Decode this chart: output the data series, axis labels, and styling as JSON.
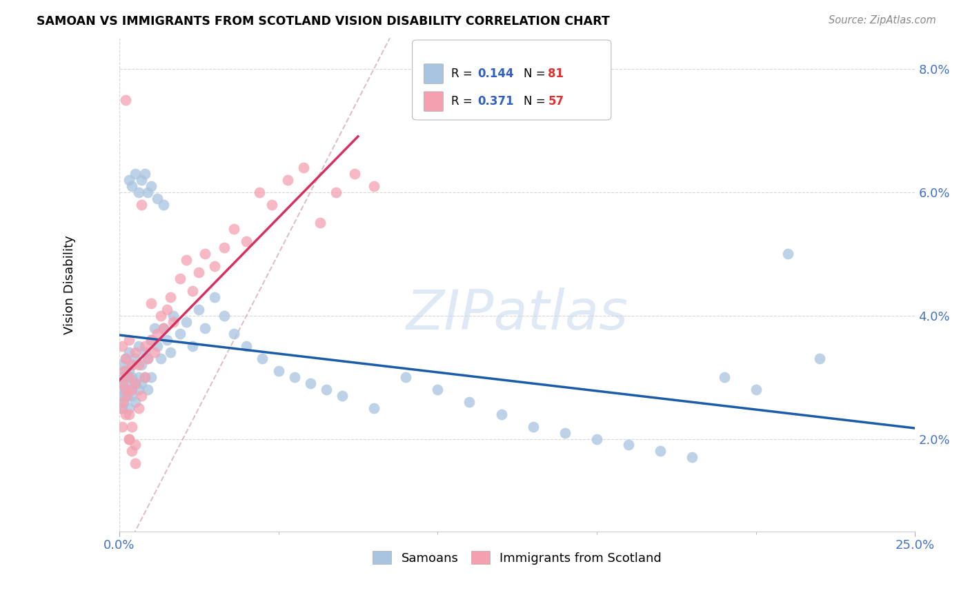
{
  "title": "SAMOAN VS IMMIGRANTS FROM SCOTLAND VISION DISABILITY CORRELATION CHART",
  "source": "Source: ZipAtlas.com",
  "ylabel": "Vision Disability",
  "watermark": "ZIPatlas",
  "color_samoans": "#a8c4e0",
  "color_scotland": "#f4a0b0",
  "color_line_samoans": "#1a5ca8",
  "color_line_scotland": "#d63060",
  "color_diagonal": "#d8b0b8",
  "xmin": 0.0,
  "xmax": 0.25,
  "ymin": 0.005,
  "ymax": 0.085,
  "samoans_x": [
    0.0005,
    0.0008,
    0.001,
    0.001,
    0.001,
    0.0012,
    0.0015,
    0.002,
    0.002,
    0.002,
    0.002,
    0.0025,
    0.003,
    0.003,
    0.003,
    0.003,
    0.004,
    0.004,
    0.004,
    0.004,
    0.005,
    0.005,
    0.005,
    0.006,
    0.006,
    0.006,
    0.007,
    0.007,
    0.008,
    0.008,
    0.009,
    0.009,
    0.01,
    0.01,
    0.011,
    0.012,
    0.013,
    0.014,
    0.015,
    0.016,
    0.017,
    0.019,
    0.021,
    0.023,
    0.025,
    0.027,
    0.03,
    0.033,
    0.036,
    0.04,
    0.045,
    0.05,
    0.055,
    0.06,
    0.065,
    0.07,
    0.08,
    0.09,
    0.1,
    0.11,
    0.12,
    0.13,
    0.14,
    0.15,
    0.16,
    0.17,
    0.18,
    0.19,
    0.2,
    0.21,
    0.003,
    0.004,
    0.005,
    0.006,
    0.007,
    0.008,
    0.009,
    0.01,
    0.012,
    0.014,
    0.22
  ],
  "samoans_y": [
    0.028,
    0.027,
    0.03,
    0.025,
    0.032,
    0.029,
    0.026,
    0.031,
    0.028,
    0.027,
    0.033,
    0.03,
    0.028,
    0.025,
    0.031,
    0.034,
    0.029,
    0.027,
    0.032,
    0.03,
    0.029,
    0.026,
    0.033,
    0.03,
    0.028,
    0.035,
    0.032,
    0.029,
    0.034,
    0.03,
    0.033,
    0.028,
    0.036,
    0.03,
    0.038,
    0.035,
    0.033,
    0.038,
    0.036,
    0.034,
    0.04,
    0.037,
    0.039,
    0.035,
    0.041,
    0.038,
    0.043,
    0.04,
    0.037,
    0.035,
    0.033,
    0.031,
    0.03,
    0.029,
    0.028,
    0.027,
    0.025,
    0.03,
    0.028,
    0.026,
    0.024,
    0.022,
    0.021,
    0.02,
    0.019,
    0.018,
    0.017,
    0.03,
    0.028,
    0.05,
    0.062,
    0.061,
    0.063,
    0.06,
    0.062,
    0.063,
    0.06,
    0.061,
    0.059,
    0.058,
    0.033
  ],
  "scotland_x": [
    0.0005,
    0.0008,
    0.001,
    0.001,
    0.0012,
    0.0015,
    0.002,
    0.002,
    0.002,
    0.002,
    0.0025,
    0.003,
    0.003,
    0.003,
    0.003,
    0.004,
    0.004,
    0.004,
    0.005,
    0.005,
    0.005,
    0.006,
    0.006,
    0.007,
    0.007,
    0.008,
    0.008,
    0.009,
    0.01,
    0.01,
    0.011,
    0.012,
    0.013,
    0.014,
    0.015,
    0.016,
    0.017,
    0.019,
    0.021,
    0.023,
    0.025,
    0.027,
    0.03,
    0.033,
    0.036,
    0.04,
    0.044,
    0.048,
    0.053,
    0.058,
    0.063,
    0.068,
    0.074,
    0.08,
    0.003,
    0.004,
    0.005
  ],
  "scotland_y": [
    0.025,
    0.029,
    0.022,
    0.035,
    0.026,
    0.031,
    0.028,
    0.024,
    0.033,
    0.075,
    0.027,
    0.03,
    0.024,
    0.036,
    0.02,
    0.028,
    0.032,
    0.022,
    0.029,
    0.034,
    0.019,
    0.032,
    0.025,
    0.058,
    0.027,
    0.03,
    0.035,
    0.033,
    0.036,
    0.042,
    0.034,
    0.037,
    0.04,
    0.038,
    0.041,
    0.043,
    0.039,
    0.046,
    0.049,
    0.044,
    0.047,
    0.05,
    0.048,
    0.051,
    0.054,
    0.052,
    0.06,
    0.058,
    0.062,
    0.064,
    0.055,
    0.06,
    0.063,
    0.061,
    0.02,
    0.018,
    0.016
  ]
}
